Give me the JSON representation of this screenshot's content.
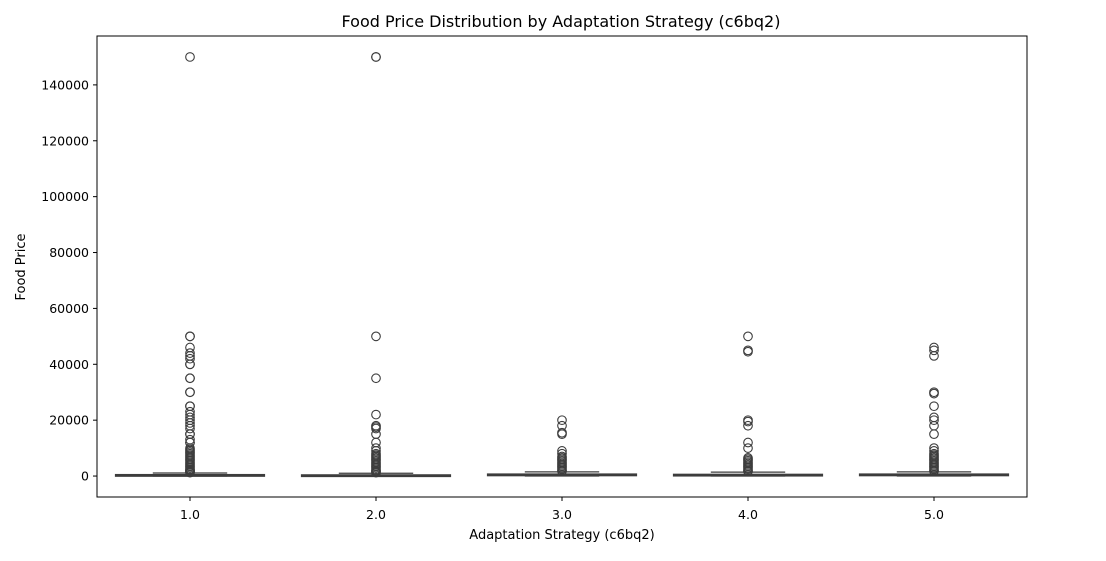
{
  "chart_data": {
    "type": "box",
    "title": "Food Price Distribution by Adaptation Strategy (c6bq2)",
    "xlabel": "Adaptation Strategy (c6bq2)",
    "ylabel": "Food Price",
    "categories": [
      "1.0",
      "2.0",
      "3.0",
      "4.0",
      "5.0"
    ],
    "ylim": [
      -7500,
      157500
    ],
    "yticks": [
      0,
      20000,
      40000,
      60000,
      80000,
      100000,
      120000,
      140000
    ],
    "ytick_labels": [
      "0",
      "20000",
      "40000",
      "60000",
      "80000",
      "100000",
      "120000",
      "140000"
    ],
    "grid": false,
    "legend": "none",
    "box_color": "#5b84b1",
    "line_color": "#3d3d3d",
    "boxes": [
      {
        "category": "1.0",
        "q1": 100,
        "median": 300,
        "q3": 500,
        "whisker_low": 0,
        "whisker_high": 1100,
        "outliers": [
          150000,
          50000,
          50000,
          46000,
          44000,
          43000,
          42000,
          40000,
          40000,
          35000,
          35000,
          30000,
          30000,
          25000,
          25000,
          23000,
          22000,
          21000,
          20000,
          19000,
          18000,
          17000,
          15000,
          15000,
          13000,
          12000,
          12000,
          10000,
          9500,
          9000,
          8500,
          8000,
          7500,
          7000,
          6500,
          6000,
          5500,
          5000,
          4500,
          4000,
          3500,
          3000,
          2500,
          2200,
          2000,
          1800,
          1600,
          1400,
          1200
        ]
      },
      {
        "category": "2.0",
        "q1": 80,
        "median": 200,
        "q3": 400,
        "whisker_low": 0,
        "whisker_high": 1000,
        "outliers": [
          150000,
          150000,
          50000,
          35000,
          22000,
          18000,
          17500,
          17000,
          15000,
          12000,
          10000,
          9000,
          8000,
          7500,
          7000,
          6500,
          6000,
          5500,
          5000,
          4500,
          4000,
          3500,
          3000,
          2500,
          2000,
          1800,
          1500,
          1200
        ]
      },
      {
        "category": "3.0",
        "q1": 150,
        "median": 400,
        "q3": 700,
        "whisker_low": 0,
        "whisker_high": 1500,
        "outliers": [
          20000,
          18000,
          15500,
          15000,
          9000,
          8000,
          7000,
          6500,
          6000,
          5500,
          5000,
          4500,
          4000,
          3500,
          3000,
          2500,
          2000,
          1800
        ]
      },
      {
        "category": "4.0",
        "q1": 100,
        "median": 300,
        "q3": 600,
        "whisker_low": 0,
        "whisker_high": 1400,
        "outliers": [
          50000,
          45000,
          44500,
          20000,
          19500,
          18000,
          12000,
          10000,
          6500,
          6000,
          5500,
          5000,
          4500,
          4000,
          3500,
          3000,
          2500,
          2000,
          1700
        ]
      },
      {
        "category": "5.0",
        "q1": 150,
        "median": 400,
        "q3": 700,
        "whisker_low": 0,
        "whisker_high": 1500,
        "outliers": [
          46000,
          45000,
          43000,
          30000,
          29500,
          25000,
          21000,
          20000,
          18000,
          15000,
          10000,
          9000,
          8000,
          7500,
          7000,
          6500,
          6000,
          5500,
          5000,
          4500,
          4000,
          3500,
          3000,
          2500,
          2000,
          1800
        ]
      }
    ]
  }
}
